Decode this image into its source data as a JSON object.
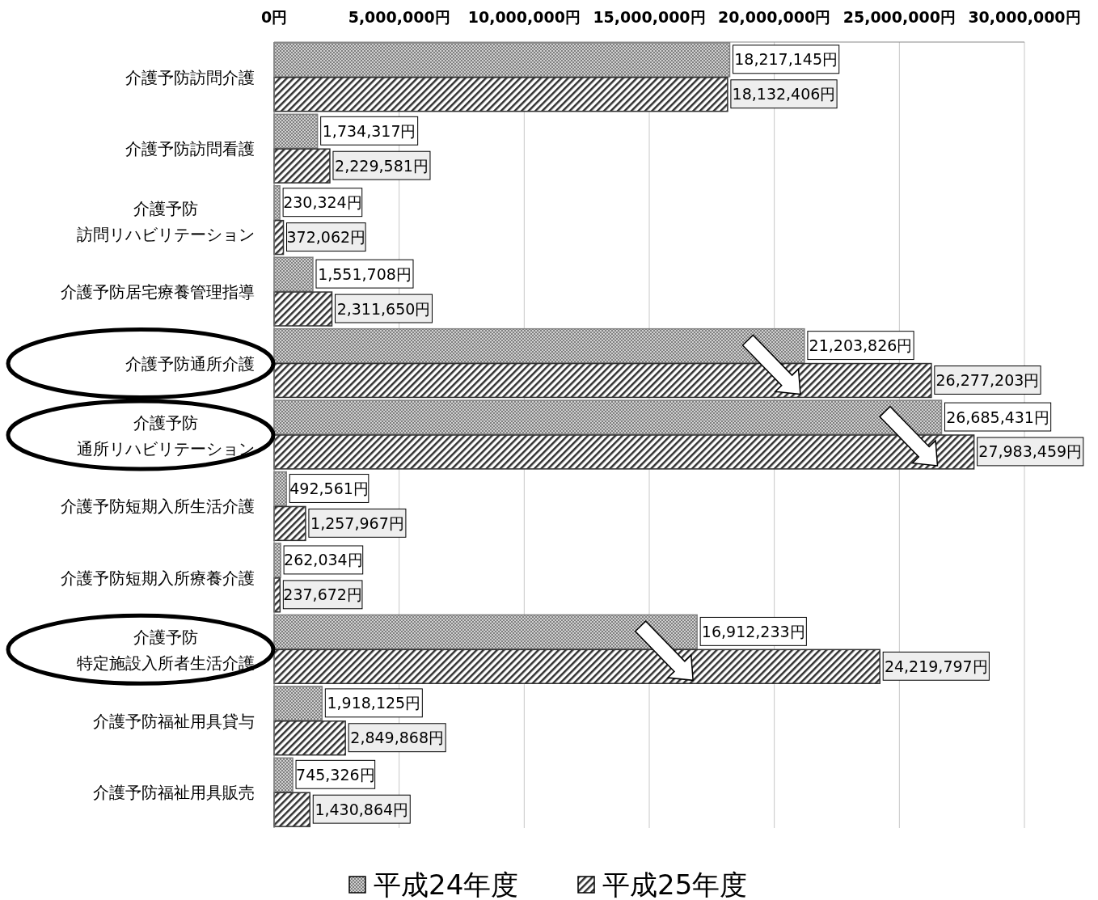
{
  "chart_data": {
    "type": "bar",
    "orientation": "horizontal",
    "categories": [
      "介護予防訪問介護",
      "介護予防訪問看護",
      "介護予防訪問リハビリテーション",
      "介護予防居宅療養管理指導",
      "介護予防通所介護",
      "介護予防通所リハビリテーション",
      "介護予防短期入所生活介護",
      "介護予防短期入所療養介護",
      "介護予防特定施設入所者生活介護",
      "介護予防福祉用具貸与",
      "介護予防福祉用具販売"
    ],
    "series": [
      {
        "name": "平成24年度",
        "color": "#808080",
        "values": [
          18217145,
          1734317,
          230324,
          1551708,
          21203826,
          26685431,
          492561,
          262034,
          16912233,
          1918125,
          745326
        ],
        "value_labels": [
          "18,217,145円",
          "1,734,317円",
          "230,324円",
          "1,551,708円",
          "21,203,826円",
          "26,685,431円",
          "492,561円",
          "262,034円",
          "16,912,233円",
          "1,918,125円",
          "745,326円"
        ]
      },
      {
        "name": "平成25年度",
        "color": "#303030",
        "values": [
          18132406,
          2229581,
          372062,
          2311650,
          26277203,
          27983459,
          1257967,
          237672,
          24219797,
          2849868,
          1430864
        ],
        "value_labels": [
          "18,132,406円",
          "2,229,581円",
          "372,062円",
          "2,311,650円",
          "26,277,203円",
          "27,983,459円",
          "1,257,967円",
          "237,672円",
          "24,219,797円",
          "2,849,868円",
          "1,430,864円"
        ]
      }
    ],
    "xlim": [
      0,
      30000000
    ],
    "xticks": [
      {
        "value": 0,
        "label": "0円"
      },
      {
        "value": 5000000,
        "label": "5,000,000円"
      },
      {
        "value": 10000000,
        "label": "10,000,000円"
      },
      {
        "value": 15000000,
        "label": "15,000,000円"
      },
      {
        "value": 20000000,
        "label": "20,000,000円"
      },
      {
        "value": 25000000,
        "label": "25,000,000円"
      },
      {
        "value": 30000000,
        "label": "30,000,000円"
      }
    ],
    "grid": true,
    "legend": "bottom"
  }
}
